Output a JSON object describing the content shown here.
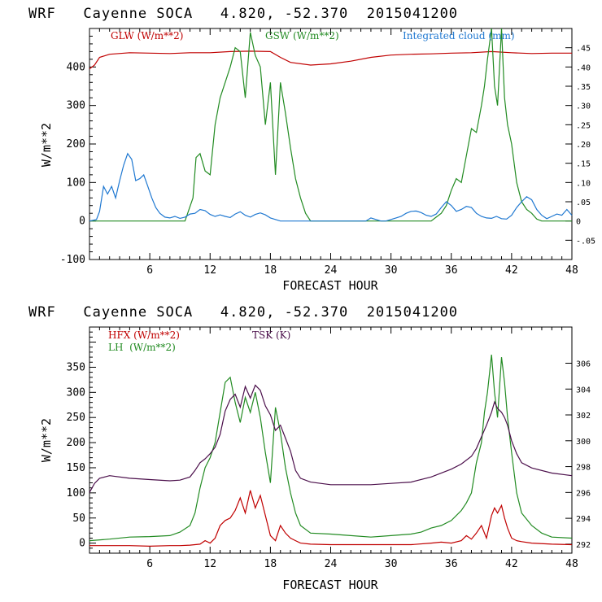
{
  "charts": [
    {
      "title": "WRF   Cayenne SOCA   4.820, -52.370  2015041200",
      "xlabel": "FORECAST HOUR",
      "ylabel": "W/m**2",
      "x_range": [
        0,
        48
      ],
      "x_ticks": [
        "6",
        "12",
        "18",
        "24",
        "30",
        "36",
        "42",
        "48"
      ],
      "y_range": [
        -100,
        500
      ],
      "y_ticks": [
        "-100",
        "0",
        "100",
        "200",
        "300",
        "400"
      ],
      "right_range": [
        -0.1,
        0.5
      ],
      "right_ticks": [
        "-.05",
        "0",
        ".05",
        ".10",
        ".15",
        ".20",
        ".25",
        ".30",
        ".35",
        ".40",
        ".45"
      ],
      "legend": [
        {
          "label": "GLW (W/m**2)",
          "color": "#c00000"
        },
        {
          "label": "GSW (W/m**2)",
          "color": "#228b22"
        },
        {
          "label": "Integrated cloud (mm)",
          "color": "#1f78d1"
        }
      ]
    },
    {
      "title": "WRF   Cayenne SOCA   4.820, -52.370  2015041200",
      "xlabel": "FORECAST HOUR",
      "ylabel": "W/m**2",
      "x_range": [
        0,
        48
      ],
      "x_ticks": [
        "6",
        "12",
        "18",
        "24",
        "30",
        "36",
        "42",
        "48"
      ],
      "y_range": [
        -20,
        430
      ],
      "y_ticks": [
        "0",
        "50",
        "100",
        "150",
        "200",
        "250",
        "300",
        "350"
      ],
      "right_range": [
        291.3,
        308.8
      ],
      "right_ticks": [
        "292",
        "294",
        "296",
        "298",
        "300",
        "302",
        "304",
        "306"
      ],
      "legend": [
        {
          "label": "HFX (W/m**2)",
          "color": "#c00000"
        },
        {
          "label": "LH  (W/m**2)",
          "color": "#228b22"
        },
        {
          "label": "TSK (K)",
          "color": "#4b0f4b"
        }
      ]
    }
  ],
  "chart_data": [
    {
      "type": "line",
      "title": "WRF   Cayenne SOCA   4.820, -52.370  2015041200",
      "xlabel": "FORECAST HOUR",
      "ylabel": "W/m**2",
      "xlim": [
        0,
        48
      ],
      "ylim": [
        -100,
        500
      ],
      "y2lim": [
        -0.1,
        0.5
      ],
      "series": [
        {
          "name": "GLW (W/m**2)",
          "axis": "left",
          "color": "#c00000",
          "x": [
            0,
            0.5,
            1,
            2,
            4,
            6,
            8,
            10,
            12,
            14,
            16,
            18,
            19,
            20,
            22,
            24,
            26,
            28,
            30,
            32,
            34,
            36,
            38,
            40,
            42,
            44,
            46,
            48
          ],
          "y": [
            395,
            405,
            425,
            433,
            437,
            436,
            435,
            437,
            437,
            440,
            441,
            440,
            425,
            412,
            405,
            408,
            415,
            425,
            431,
            433,
            434,
            436,
            437,
            440,
            437,
            435,
            436,
            436
          ]
        },
        {
          "name": "GSW (W/m**2)",
          "axis": "left",
          "color": "#228b22",
          "x": [
            0,
            9.5,
            10.3,
            10.6,
            11,
            11.5,
            12,
            12.5,
            13,
            13.5,
            14,
            14.5,
            15,
            15.5,
            16,
            16.5,
            17,
            17.5,
            18,
            18.5,
            19,
            19.5,
            20,
            20.5,
            21,
            21.5,
            22,
            34,
            34.5,
            35,
            35.5,
            36,
            36.5,
            37,
            37.5,
            38,
            38.5,
            39,
            39.3,
            39.6,
            40,
            40.3,
            40.6,
            41,
            41.3,
            41.6,
            42,
            42.5,
            43,
            43.5,
            44,
            44.5,
            45,
            46,
            48
          ],
          "y": [
            0,
            0,
            60,
            165,
            175,
            130,
            120,
            250,
            320,
            360,
            400,
            450,
            440,
            320,
            490,
            430,
            400,
            250,
            360,
            120,
            360,
            280,
            190,
            110,
            60,
            20,
            0,
            0,
            10,
            20,
            40,
            80,
            110,
            100,
            170,
            240,
            230,
            300,
            350,
            420,
            500,
            350,
            300,
            500,
            320,
            250,
            200,
            100,
            50,
            30,
            20,
            5,
            0,
            0,
            0
          ]
        },
        {
          "name": "Integrated cloud (mm)",
          "axis": "right",
          "color": "#1f78d1",
          "x": [
            0,
            0.7,
            1,
            1.4,
            1.8,
            2.2,
            2.6,
            3,
            3.4,
            3.8,
            4.2,
            4.6,
            5,
            5.4,
            5.8,
            6.2,
            6.6,
            7,
            7.5,
            8,
            8.5,
            9,
            9.5,
            10,
            10.5,
            11,
            11.5,
            12,
            12.5,
            13,
            13.5,
            14,
            14.5,
            15,
            15.5,
            16,
            16.5,
            17,
            17.5,
            18,
            18.5,
            19,
            19.5,
            20,
            20.5,
            21,
            21.5,
            22,
            27.5,
            28,
            28.5,
            29,
            29.5,
            30,
            30.5,
            31,
            31.5,
            32,
            32.5,
            33,
            33.5,
            34,
            34.5,
            35,
            35.5,
            36,
            36.5,
            37,
            37.5,
            38,
            38.5,
            39,
            39.5,
            40,
            40.5,
            41,
            41.5,
            42,
            42.5,
            43,
            43.5,
            44,
            44.5,
            45,
            45.5,
            46,
            46.5,
            47,
            47.5,
            48
          ],
          "y": [
            0,
            0.004,
            0.025,
            0.09,
            0.07,
            0.09,
            0.06,
            0.105,
            0.145,
            0.175,
            0.16,
            0.105,
            0.11,
            0.12,
            0.09,
            0.06,
            0.035,
            0.02,
            0.01,
            0.008,
            0.012,
            0.007,
            0.01,
            0.018,
            0.02,
            0.03,
            0.027,
            0.017,
            0.012,
            0.016,
            0.012,
            0.009,
            0.018,
            0.024,
            0.015,
            0.01,
            0.017,
            0.021,
            0.016,
            0.008,
            0.004,
            0.0,
            0.0,
            0.0,
            0.0,
            0.0,
            0.0,
            0.0,
            0.0,
            0.008,
            0.004,
            0.0,
            0.0,
            0.004,
            0.008,
            0.012,
            0.02,
            0.025,
            0.026,
            0.022,
            0.015,
            0.012,
            0.018,
            0.035,
            0.05,
            0.04,
            0.025,
            0.03,
            0.038,
            0.035,
            0.02,
            0.012,
            0.008,
            0.007,
            0.012,
            0.006,
            0.005,
            0.015,
            0.035,
            0.05,
            0.063,
            0.055,
            0.03,
            0.015,
            0.006,
            0.012,
            0.018,
            0.015,
            0.03,
            0.015
          ]
        }
      ]
    },
    {
      "type": "line",
      "title": "WRF   Cayenne SOCA   4.820, -52.370  2015041200",
      "xlabel": "FORECAST HOUR",
      "ylabel": "W/m**2",
      "xlim": [
        0,
        48
      ],
      "ylim": [
        -20,
        430
      ],
      "y2lim": [
        291.3,
        308.8
      ],
      "series": [
        {
          "name": "HFX (W/m**2)",
          "axis": "left",
          "color": "#c00000",
          "x": [
            0,
            2,
            4,
            6,
            8,
            9,
            10,
            11,
            11.5,
            12,
            12.5,
            13,
            13.5,
            14,
            14.5,
            15,
            15.5,
            16,
            16.5,
            17,
            17.5,
            18,
            18.5,
            19,
            19.5,
            20,
            20.5,
            21,
            22,
            24,
            28,
            32,
            34,
            35,
            36,
            37,
            37.5,
            38,
            38.5,
            39,
            39.5,
            40,
            40.3,
            40.6,
            41,
            41.3,
            41.6,
            42,
            42.5,
            43,
            44,
            46,
            48
          ],
          "y": [
            -5,
            -5,
            -5,
            -6,
            -5,
            -5,
            -4,
            -2,
            5,
            0,
            10,
            35,
            45,
            50,
            65,
            90,
            60,
            105,
            70,
            95,
            55,
            15,
            5,
            35,
            20,
            10,
            5,
            0,
            -2,
            -3,
            -3,
            -3,
            0,
            2,
            0,
            5,
            15,
            8,
            20,
            35,
            10,
            55,
            70,
            60,
            75,
            50,
            30,
            10,
            5,
            3,
            0,
            -2,
            -3
          ]
        },
        {
          "name": "LH  (W/m**2)",
          "axis": "left",
          "color": "#228b22",
          "x": [
            0,
            2,
            4,
            6,
            8,
            9,
            10,
            10.5,
            11,
            11.5,
            12,
            12.5,
            13,
            13.5,
            14,
            14.5,
            15,
            15.5,
            16,
            16.5,
            17,
            17.5,
            18,
            18.5,
            19,
            19.5,
            20,
            20.5,
            21,
            22,
            24,
            26,
            28,
            30,
            32,
            33,
            34,
            35,
            36,
            37,
            37.5,
            38,
            38.5,
            39,
            39.3,
            39.6,
            40,
            40.3,
            40.6,
            41,
            41.3,
            41.6,
            42,
            42.5,
            43,
            44,
            45,
            46,
            48
          ],
          "y": [
            5,
            8,
            12,
            13,
            15,
            22,
            35,
            60,
            110,
            150,
            170,
            200,
            260,
            320,
            330,
            280,
            240,
            290,
            260,
            300,
            250,
            180,
            120,
            270,
            220,
            150,
            100,
            60,
            35,
            20,
            18,
            15,
            12,
            15,
            18,
            22,
            30,
            35,
            45,
            65,
            80,
            100,
            160,
            200,
            260,
            300,
            375,
            300,
            250,
            370,
            320,
            250,
            180,
            100,
            60,
            35,
            20,
            12,
            10
          ]
        },
        {
          "name": "TSK (K)",
          "axis": "right",
          "color": "#4b0f4b",
          "x": [
            0,
            0.5,
            1,
            2,
            4,
            6,
            8,
            9,
            10,
            10.5,
            11,
            11.5,
            12,
            12.5,
            13,
            13.5,
            14,
            14.5,
            15,
            15.5,
            16,
            16.5,
            17,
            17.5,
            18,
            18.5,
            19,
            19.5,
            20,
            20.5,
            21,
            22,
            24,
            26,
            28,
            30,
            32,
            34,
            36,
            37,
            38,
            38.5,
            39,
            39.5,
            40,
            40.3,
            40.6,
            41,
            41.3,
            41.6,
            42,
            42.5,
            43,
            44,
            46,
            48
          ],
          "y": [
            296,
            296.7,
            297.1,
            297.3,
            297.1,
            297,
            296.9,
            296.95,
            297.2,
            297.7,
            298.3,
            298.6,
            299,
            299.5,
            300.5,
            302.3,
            303.2,
            303.6,
            302.6,
            304.2,
            303.3,
            304.3,
            303.9,
            302.7,
            302,
            300.8,
            301.2,
            300.2,
            299.2,
            297.7,
            297.1,
            296.8,
            296.6,
            296.6,
            296.6,
            296.7,
            296.8,
            297.2,
            297.8,
            298.2,
            298.8,
            299.4,
            300.3,
            301.2,
            302.2,
            303,
            302.5,
            302.2,
            301.8,
            301.2,
            300,
            299,
            298.3,
            297.9,
            297.5,
            297.3
          ]
        }
      ]
    }
  ]
}
